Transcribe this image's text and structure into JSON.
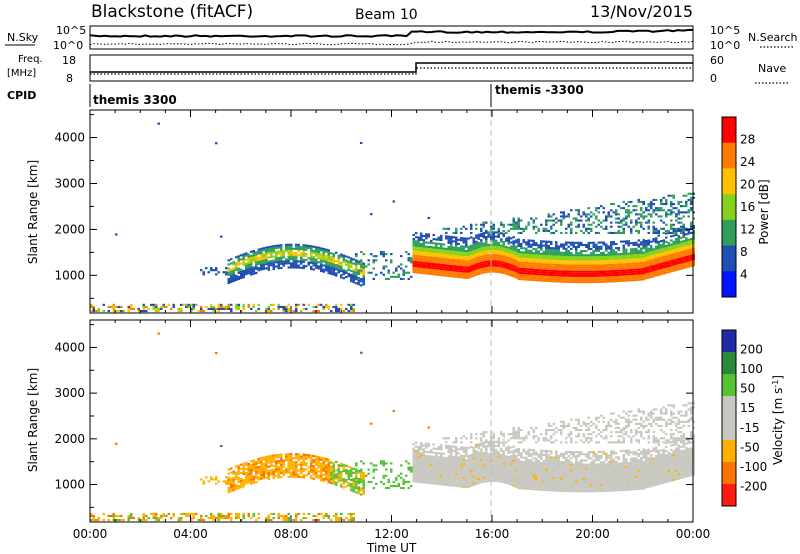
{
  "header": {
    "title": "Blackstone (fitACF)",
    "beam": "Beam 10",
    "date": "13/Nov/2015"
  },
  "top_panels": {
    "noise": {
      "left_label": "N.Sky",
      "right_label": "N.Search",
      "left_ticks": [
        "10^5",
        "10^0"
      ],
      "right_ticks": [
        "10^5",
        "10^0"
      ]
    },
    "freq": {
      "left_label_1": "Freq.",
      "left_label_2": "[MHz]",
      "right_label": "Nave",
      "left_ticks": [
        "18",
        "8"
      ],
      "right_ticks": [
        "60",
        "0"
      ]
    },
    "cpid": {
      "label": "CPID",
      "segments": [
        "themis 3300",
        "themis -3300"
      ]
    }
  },
  "chart_data": [
    {
      "type": "heatmap",
      "name": "power",
      "ylabel": "Slant Range [km]",
      "xlabel": "Time UT",
      "xticks": [
        "00:00",
        "04:00",
        "08:00",
        "12:00",
        "16:00",
        "20:00",
        "00:00"
      ],
      "xlim_hours": [
        0,
        24
      ],
      "yticks": [
        "1000",
        "2000",
        "3000",
        "4000"
      ],
      "ylim_km": [
        180,
        4600
      ],
      "colorbar": {
        "label": "Power [dB]",
        "ticks": [
          "28",
          "24",
          "20",
          "16",
          "12",
          "8",
          "4"
        ],
        "colors": [
          "#ff0000",
          "#ff7b00",
          "#ffc200",
          "#86d21a",
          "#2e9e5a",
          "#1f4fb0",
          "#0012ff"
        ]
      },
      "bands": [
        {
          "name": "near-range clutter",
          "t_start": 0.0,
          "t_end": 10.5,
          "range": [
            200,
            400
          ],
          "level": "mixed"
        },
        {
          "name": "pre-midnight echoes",
          "t_start": 5.5,
          "t_end": 11.0,
          "range": [
            900,
            1500
          ],
          "level": "16-24"
        },
        {
          "name": "main band",
          "t_start": 12.8,
          "t_end": 24.0,
          "range": [
            900,
            2200
          ],
          "level": "12-28"
        },
        {
          "name": "late high-range",
          "t_start": 14.0,
          "t_end": 24.0,
          "range": [
            2000,
            3000
          ],
          "level": "4-8"
        }
      ]
    },
    {
      "type": "heatmap",
      "name": "velocity",
      "ylabel": "Slant Range [km]",
      "xlabel": "Time UT",
      "xticks": [
        "00:00",
        "04:00",
        "08:00",
        "12:00",
        "16:00",
        "20:00",
        "00:00"
      ],
      "xlim_hours": [
        0,
        24
      ],
      "yticks": [
        "1000",
        "2000",
        "3000",
        "4000"
      ],
      "ylim_km": [
        180,
        4600
      ],
      "colorbar": {
        "label": "Velocity [m s^-1]",
        "ticks": [
          "200",
          "100",
          "50",
          "15",
          "-15",
          "-50",
          "-100",
          "-200"
        ],
        "colors": [
          "#1f2aa8",
          "#2a8a3a",
          "#55c236",
          "#c8c8c0",
          "#c8c8c0",
          "#ffb100",
          "#ff7400",
          "#ff1b0f"
        ]
      },
      "bands": [
        {
          "name": "pre-midnight echoes",
          "t_start": 4.5,
          "t_end": 11.0,
          "range": [
            900,
            1600
          ],
          "velocity": "-50 to -15"
        },
        {
          "name": "ground scatter band",
          "t_start": 12.8,
          "t_end": 24.0,
          "range": [
            900,
            2200
          ],
          "velocity": "-15 to 15"
        },
        {
          "name": "transition echoes",
          "t_start": 9.5,
          "t_end": 13.0,
          "range": [
            900,
            1600
          ],
          "velocity": "15 to 50"
        }
      ]
    }
  ]
}
